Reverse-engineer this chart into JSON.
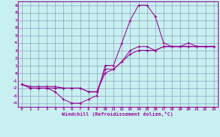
{
  "xlabel": "Windchill (Refroidissement éolien,°C)",
  "bg_color": "#c8f0f0",
  "line_color": "#990099",
  "grid_color": "#8899bb",
  "xlim": [
    -0.5,
    23.5
  ],
  "ylim": [
    -4.5,
    9.5
  ],
  "xticks": [
    0,
    1,
    2,
    3,
    4,
    5,
    6,
    7,
    8,
    9,
    10,
    11,
    12,
    13,
    14,
    15,
    16,
    17,
    18,
    19,
    20,
    21,
    22,
    23
  ],
  "yticks": [
    -4,
    -3,
    -2,
    -1,
    0,
    1,
    2,
    3,
    4,
    5,
    6,
    7,
    8,
    9
  ],
  "curve1_x": [
    0,
    1,
    2,
    3,
    4,
    5,
    6,
    7,
    8,
    9,
    10,
    11,
    12,
    13,
    14,
    15,
    16,
    17,
    18,
    19,
    20,
    21,
    22,
    23
  ],
  "curve1_y": [
    -1.5,
    -2.0,
    -2.0,
    -2.0,
    -2.5,
    -3.5,
    -4.0,
    -4.0,
    -3.5,
    -3.0,
    1.0,
    1.0,
    4.0,
    7.0,
    9.0,
    9.0,
    7.5,
    4.0,
    3.5,
    3.5,
    4.0,
    3.5,
    3.5,
    3.5
  ],
  "curve2_x": [
    0,
    1,
    2,
    3,
    4,
    5,
    6,
    7,
    8,
    9,
    10,
    11,
    12,
    13,
    14,
    15,
    16,
    17,
    18,
    19,
    20,
    21,
    22,
    23
  ],
  "curve2_y": [
    -1.5,
    -2.0,
    -2.0,
    -2.0,
    -2.0,
    -2.0,
    -2.0,
    -2.0,
    -2.5,
    -2.5,
    0.5,
    0.5,
    1.5,
    3.0,
    3.5,
    3.5,
    3.0,
    3.5,
    3.5,
    3.5,
    3.5,
    3.5,
    3.5,
    3.5
  ],
  "curve3_x": [
    0,
    1,
    2,
    3,
    4,
    5,
    6,
    7,
    8,
    9,
    10,
    11,
    12,
    13,
    14,
    15,
    16,
    17,
    18,
    19,
    20,
    21,
    22,
    23
  ],
  "curve3_y": [
    -1.5,
    -1.8,
    -1.8,
    -1.8,
    -1.8,
    -2.0,
    -2.0,
    -2.0,
    -2.5,
    -2.5,
    0.0,
    0.5,
    1.5,
    2.5,
    3.0,
    3.0,
    3.0,
    3.5,
    3.5,
    3.5,
    3.5,
    3.5,
    3.5,
    3.5
  ],
  "marker": "+"
}
